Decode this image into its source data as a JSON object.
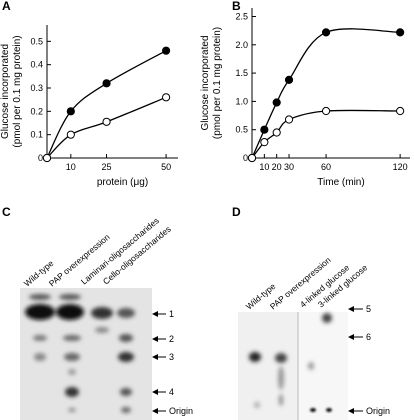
{
  "chart_data": [
    {
      "type": "line",
      "panel_label": "A",
      "xlabel": "protein (μg)",
      "ylabel": [
        "Glucose incorporated",
        "(pmol per 0.1 mg protein)"
      ],
      "xlim": [
        0,
        55
      ],
      "xticks": [
        10,
        25,
        50
      ],
      "ylim": [
        0,
        0.57
      ],
      "yticks": [
        0,
        0.1,
        0.2,
        0.3,
        0.4,
        0.5
      ],
      "series": [
        {
          "color": "#000000",
          "x": [
            0,
            10,
            25,
            50
          ],
          "values": [
            0,
            0.2,
            0.32,
            0.46
          ]
        },
        {
          "color": "#ffffff",
          "x": [
            0,
            10,
            25,
            50
          ],
          "values": [
            0,
            0.1,
            0.155,
            0.26
          ]
        }
      ]
    },
    {
      "type": "line",
      "panel_label": "B",
      "xlabel": "Time (min)",
      "ylabel": [
        "Glucose incorporated",
        "(pmol per 0.1 mg protein)"
      ],
      "xlim": [
        0,
        128
      ],
      "xticks": [
        10,
        20,
        30,
        60,
        120
      ],
      "ylim": [
        0,
        2.65
      ],
      "yticks": [
        0,
        0.5,
        {
          "value": 1,
          "label": "1.0"
        },
        1.5,
        {
          "value": 2,
          "label": "2.0"
        },
        2.5
      ],
      "series": [
        {
          "color": "#000000",
          "x": [
            0,
            10,
            20,
            30,
            60,
            120
          ],
          "values": [
            0,
            0.5,
            0.98,
            1.38,
            2.22,
            2.22
          ]
        },
        {
          "color": "#ffffff",
          "x": [
            0,
            10,
            20,
            30,
            60,
            120
          ],
          "values": [
            0,
            0.28,
            0.45,
            0.68,
            0.83,
            0.83
          ]
        }
      ]
    }
  ],
  "gel_c": {
    "panel_label": "C",
    "lanes": [
      "Wild-type",
      "PAP overexpression",
      "Laminari-oligosaccharides",
      "Cello-oligosaccharides"
    ],
    "markers": [
      "1",
      "2",
      "3",
      "4",
      "Origin"
    ]
  },
  "gel_d": {
    "panel_label": "D",
    "lanes": [
      "Wild-type",
      "PAP overexpression",
      "4-linked glucose",
      "3-linked glucose"
    ],
    "markers": [
      "5",
      "6",
      "Origin"
    ]
  }
}
